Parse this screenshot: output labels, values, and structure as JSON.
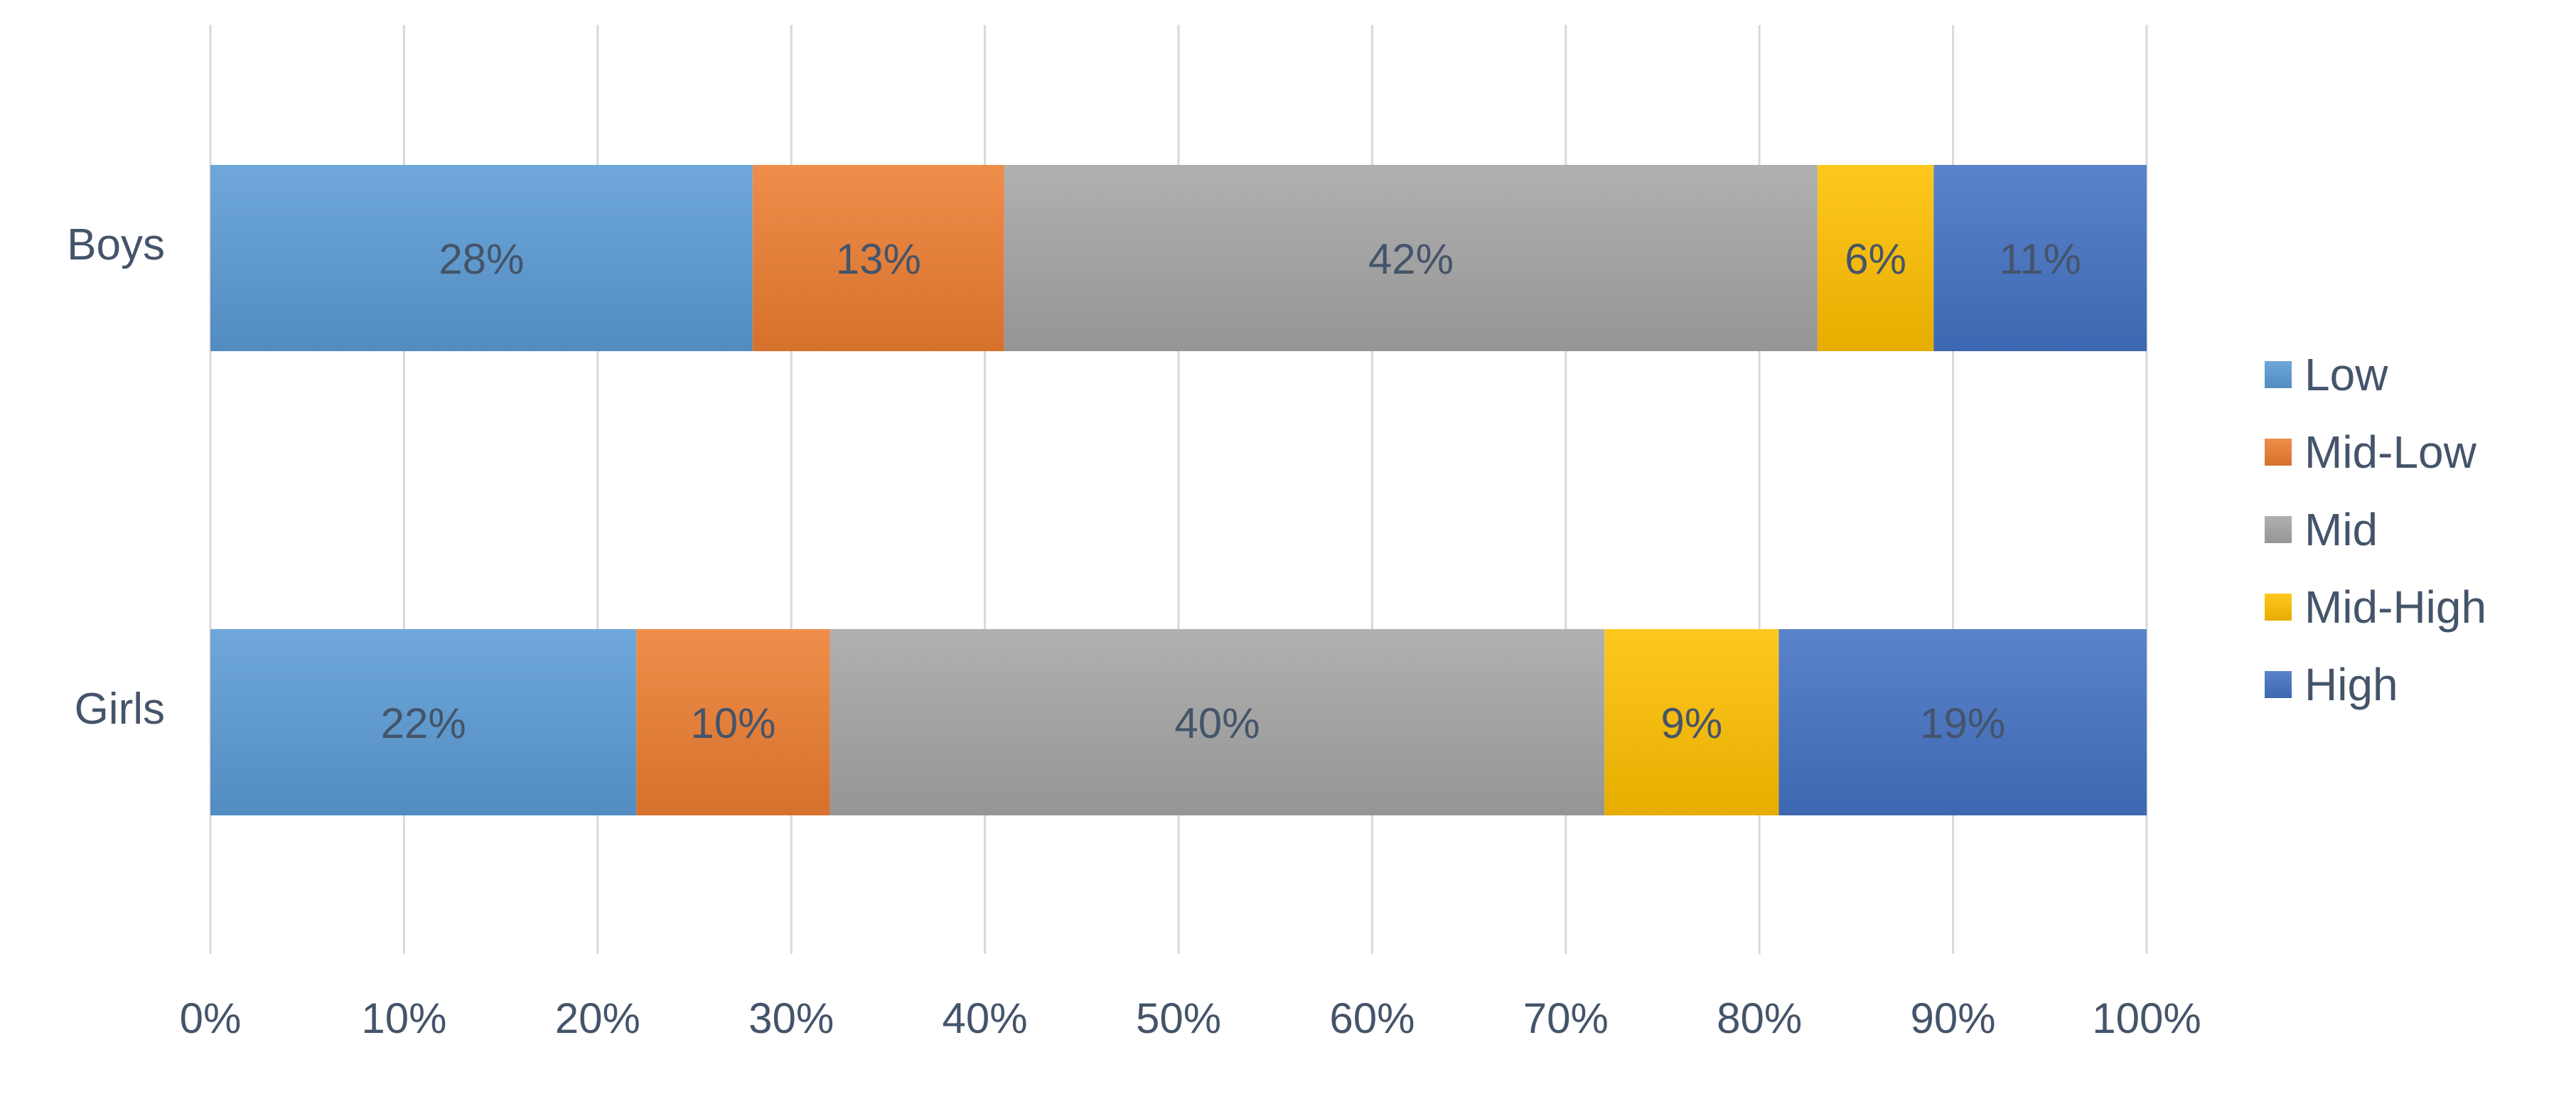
{
  "chart_data": {
    "type": "bar",
    "orientation": "horizontal",
    "stacked": true,
    "percent_stacked": true,
    "categories": [
      "Boys",
      "Girls"
    ],
    "series": [
      {
        "name": "Low",
        "values": [
          28,
          22
        ],
        "labels": [
          "28%",
          "22%"
        ],
        "color": "#5B9BD5"
      },
      {
        "name": "Mid-Low",
        "values": [
          13,
          10
        ],
        "labels": [
          "13%",
          "10%"
        ],
        "color": "#ED7D31"
      },
      {
        "name": "Mid",
        "values": [
          42,
          40
        ],
        "labels": [
          "42%",
          "40%"
        ],
        "color": "#A5A5A5"
      },
      {
        "name": "Mid-High",
        "values": [
          6,
          9
        ],
        "labels": [
          "6%",
          "9%"
        ],
        "color": "#FFC000"
      },
      {
        "name": "High",
        "values": [
          11,
          19
        ],
        "labels": [
          "11%",
          "19%"
        ],
        "color": "#4472C4"
      }
    ],
    "xlim": [
      0,
      100
    ],
    "x_ticks": [
      "0%",
      "10%",
      "20%",
      "30%",
      "40%",
      "50%",
      "60%",
      "70%",
      "80%",
      "90%",
      "100%"
    ],
    "grid": "vertical",
    "legend_position": "right",
    "title": "",
    "xlabel": "",
    "ylabel": ""
  },
  "colors": {
    "text": "#44546A",
    "gridline": "#D9D9D9",
    "label": "#44546A"
  }
}
